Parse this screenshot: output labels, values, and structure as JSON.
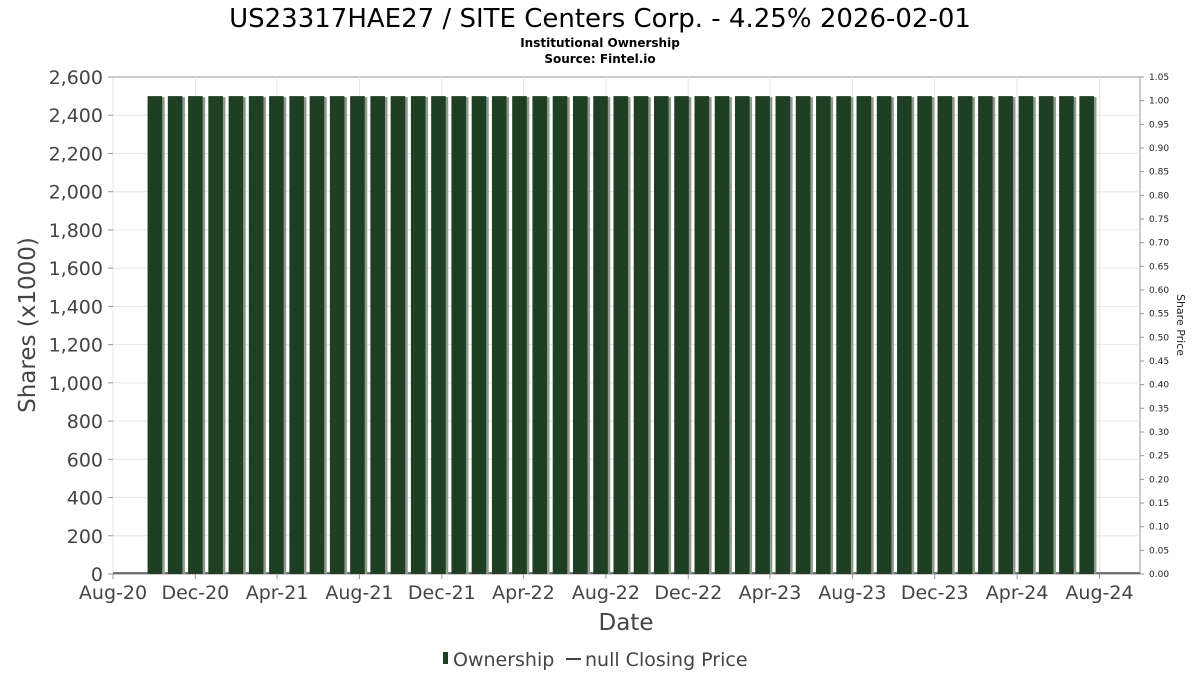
{
  "chart_data": {
    "type": "bar",
    "title": "US23317HAE27 / SITE Centers Corp. - 4.25% 2026-02-01",
    "subtitle": "Institutional Ownership",
    "source": "Source: Fintel.io",
    "xlabel": "Date",
    "ylabel": "Shares (x1000)",
    "y2label": "Share Price",
    "x_range": [
      "2020-08-01",
      "2024-09-30"
    ],
    "ylim": [
      0,
      2600
    ],
    "y2lim": [
      0,
      1.05
    ],
    "x_ticks": [
      "Aug-20",
      "Dec-20",
      "Apr-21",
      "Aug-21",
      "Dec-21",
      "Apr-22",
      "Aug-22",
      "Dec-22",
      "Apr-23",
      "Aug-23",
      "Dec-23",
      "Apr-24",
      "Aug-24"
    ],
    "y_ticks": [
      "0",
      "200",
      "400",
      "600",
      "800",
      "1,000",
      "1,200",
      "1,400",
      "1,600",
      "1,800",
      "2,000",
      "2,200",
      "2,400",
      "2,600"
    ],
    "y2_ticks": [
      "0.00",
      "0.05",
      "0.10",
      "0.15",
      "0.20",
      "0.25",
      "0.30",
      "0.35",
      "0.40",
      "0.45",
      "0.50",
      "0.55",
      "0.60",
      "0.65",
      "0.70",
      "0.75",
      "0.80",
      "0.85",
      "0.90",
      "0.95",
      "1.00",
      "1.05"
    ],
    "grid": true,
    "legend_position": "bottom",
    "series": [
      {
        "name": "Ownership",
        "color": "#1e3f24",
        "x": [
          "2020-10-02",
          "2020-11-01",
          "2020-12-01",
          "2020-12-31",
          "2021-01-30",
          "2021-03-01",
          "2021-03-31",
          "2021-04-30",
          "2021-05-30",
          "2021-06-29",
          "2021-07-29",
          "2021-08-28",
          "2021-09-27",
          "2021-10-27",
          "2021-11-26",
          "2021-12-26",
          "2022-01-25",
          "2022-02-24",
          "2022-03-26",
          "2022-04-25",
          "2022-05-25",
          "2022-06-24",
          "2022-07-24",
          "2022-08-23",
          "2022-09-22",
          "2022-10-22",
          "2022-11-21",
          "2022-12-21",
          "2023-01-20",
          "2023-02-19",
          "2023-03-21",
          "2023-04-20",
          "2023-05-20",
          "2023-06-19",
          "2023-07-19",
          "2023-08-18",
          "2023-09-17",
          "2023-10-17",
          "2023-11-16",
          "2023-12-16",
          "2024-01-15",
          "2024-02-14",
          "2024-03-15",
          "2024-04-14",
          "2024-05-14",
          "2024-06-13",
          "2024-07-13"
        ],
        "values": [
          2500,
          2500,
          2500,
          2500,
          2500,
          2500,
          2500,
          2500,
          2500,
          2500,
          2500,
          2500,
          2500,
          2500,
          2500,
          2500,
          2500,
          2500,
          2500,
          2500,
          2500,
          2500,
          2500,
          2500,
          2500,
          2500,
          2500,
          2500,
          2500,
          2500,
          2500,
          2500,
          2500,
          2500,
          2500,
          2500,
          2500,
          2500,
          2500,
          2500,
          2500,
          2500,
          2500,
          2500,
          2500,
          2500,
          2500
        ]
      },
      {
        "name": "null Closing Price",
        "color": "#444444",
        "values": []
      }
    ]
  }
}
